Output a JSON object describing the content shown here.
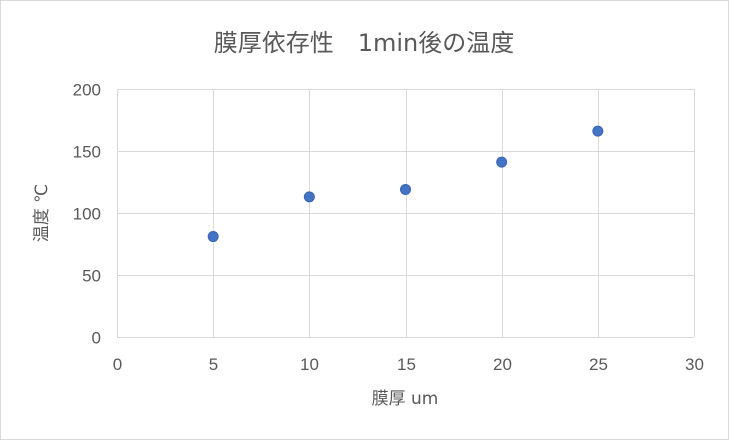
{
  "chart_data": {
    "type": "scatter",
    "title": "膜厚依存性　1min後の温度",
    "xlabel": "膜厚 um",
    "ylabel": "温度 ℃",
    "xlim": [
      0,
      30
    ],
    "ylim": [
      0,
      200
    ],
    "xticks": [
      0,
      5,
      10,
      15,
      20,
      25,
      30
    ],
    "yticks": [
      0,
      50,
      100,
      150,
      200
    ],
    "grid": true,
    "legend": "none",
    "color": "#4472c4",
    "series": [
      {
        "points": [
          {
            "x": 5,
            "y": 81
          },
          {
            "x": 10,
            "y": 113
          },
          {
            "x": 15,
            "y": 119
          },
          {
            "x": 20,
            "y": 141
          },
          {
            "x": 25,
            "y": 166
          }
        ]
      }
    ]
  }
}
